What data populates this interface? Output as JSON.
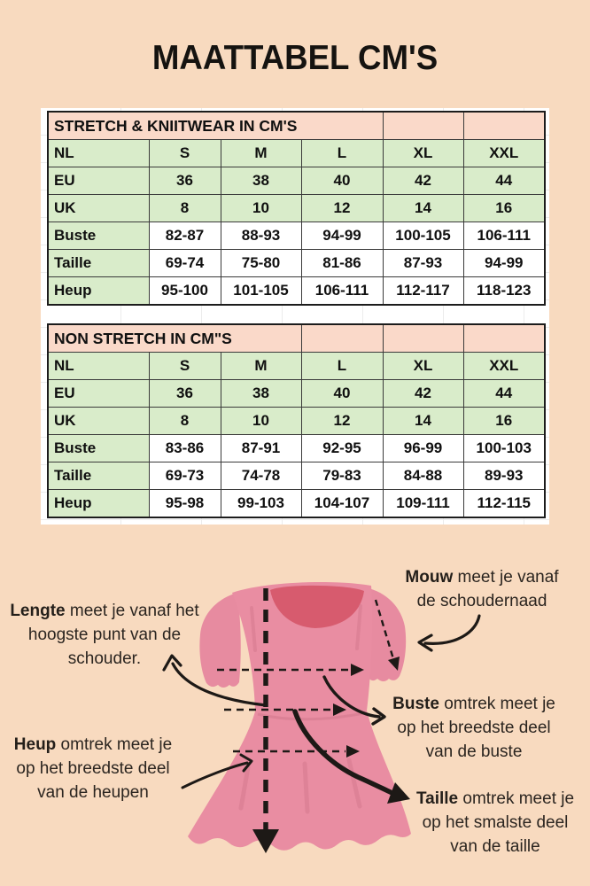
{
  "title": "MAATTABEL CM'S",
  "tables": [
    {
      "header": "STRETCH & KNIITWEAR IN CM'S",
      "header_span": 4,
      "rows": [
        {
          "label": "NL",
          "shade": "green",
          "values": [
            "S",
            "M",
            "L",
            "XL",
            "XXL"
          ]
        },
        {
          "label": "EU",
          "shade": "green",
          "values": [
            "36",
            "38",
            "40",
            "42",
            "44"
          ]
        },
        {
          "label": "UK",
          "shade": "green",
          "values": [
            "8",
            "10",
            "12",
            "14",
            "16"
          ]
        },
        {
          "label": "Buste",
          "shade": "white",
          "values": [
            "82-87",
            "88-93",
            "94-99",
            "100-105",
            "106-111"
          ]
        },
        {
          "label": "Taille",
          "shade": "white",
          "values": [
            "69-74",
            "75-80",
            "81-86",
            "87-93",
            "94-99"
          ]
        },
        {
          "label": "Heup",
          "shade": "white",
          "values": [
            "95-100",
            "101-105",
            "106-111",
            "112-117",
            "118-123"
          ]
        }
      ]
    },
    {
      "header": "NON STRETCH IN CM\"S",
      "header_span": 3,
      "rows": [
        {
          "label": "NL",
          "shade": "green",
          "values": [
            "S",
            "M",
            "L",
            "XL",
            "XXL"
          ]
        },
        {
          "label": "EU",
          "shade": "green",
          "values": [
            "36",
            "38",
            "40",
            "42",
            "44"
          ]
        },
        {
          "label": "UK",
          "shade": "green",
          "values": [
            "8",
            "10",
            "12",
            "14",
            "16"
          ]
        },
        {
          "label": "Buste",
          "shade": "white",
          "values": [
            "83-86",
            "87-91",
            "92-95",
            "96-99",
            "100-103"
          ]
        },
        {
          "label": "Taille",
          "shade": "white",
          "values": [
            "69-73",
            "74-78",
            "79-83",
            "84-88",
            "89-93"
          ]
        },
        {
          "label": "Heup",
          "shade": "white",
          "values": [
            "95-98",
            "99-103",
            "104-107",
            "109-111",
            "112-115"
          ]
        }
      ]
    }
  ],
  "notes": {
    "lengte": {
      "bold": "Lengte",
      "after": " meet je vanaf het",
      "lines": [
        "hoogste punt van de",
        "schouder."
      ]
    },
    "mouw": {
      "bold": "Mouw",
      "after": " meet je vanaf",
      "lines": [
        "de schoudernaad"
      ]
    },
    "buste": {
      "bold": "Buste",
      "after": " omtrek meet je",
      "lines": [
        "op het breedste deel",
        "van de buste"
      ]
    },
    "heup": {
      "bold": "Heup",
      "after": " omtrek meet je",
      "lines": [
        "op het breedste deel",
        "van de heupen"
      ]
    },
    "taille": {
      "bold": "Taille",
      "after": " omtrek meet je",
      "lines": [
        "op het smalste deel",
        "van de taille"
      ]
    }
  },
  "colors": {
    "background": "#f8dabf",
    "table_header_pink": "#fad9c9",
    "table_green": "#d9ecca",
    "dress_pink": "#e78ba0",
    "dress_neckline": "#d75b6e",
    "ink": "#1d1916"
  }
}
